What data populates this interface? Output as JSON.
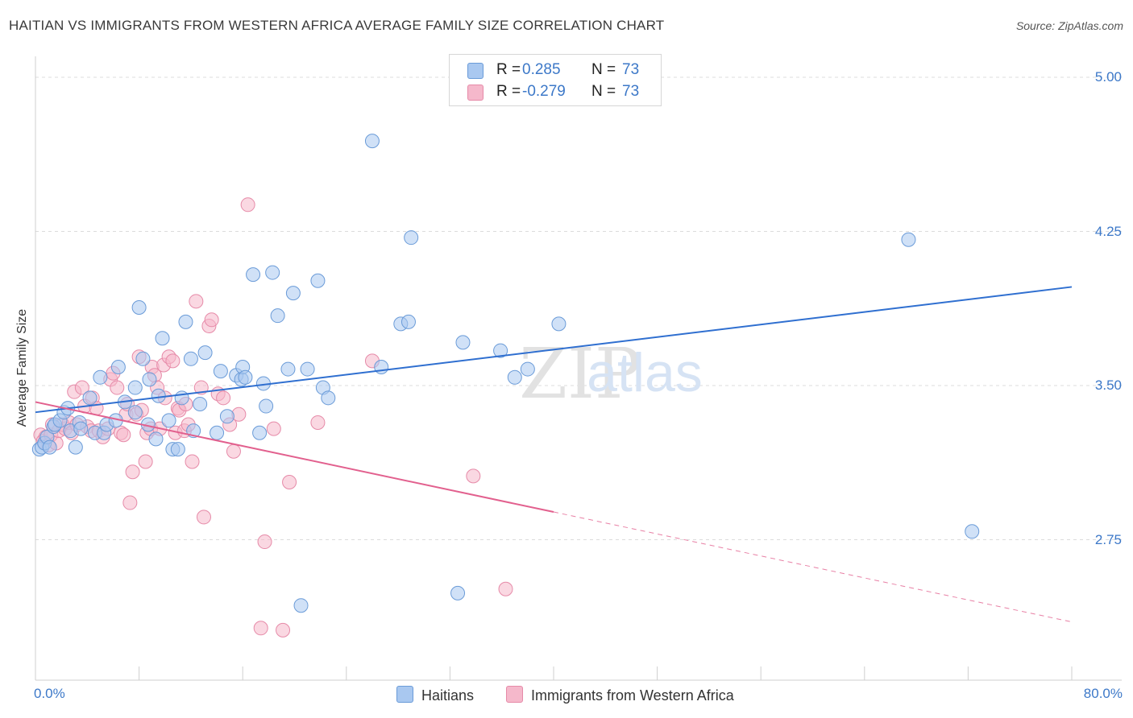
{
  "header": {
    "title": "HAITIAN VS IMMIGRANTS FROM WESTERN AFRICA AVERAGE FAMILY SIZE CORRELATION CHART",
    "source": "Source: ZipAtlas.com"
  },
  "watermark": {
    "zip": "ZIP",
    "atlas": "atlas"
  },
  "legend": {
    "rows": [
      {
        "r_label": "R =",
        "r_value": "0.285",
        "n_label": "N =",
        "n_value": "73"
      },
      {
        "r_label": "R =",
        "r_value": "-0.279",
        "n_label": "N =",
        "n_value": "73"
      }
    ]
  },
  "colors": {
    "haitians_fill": "#a9c8f0",
    "haitians_stroke": "#6a9bd8",
    "haitians_line": "#2f6fd0",
    "wafrica_fill": "#f5b8cb",
    "wafrica_stroke": "#e68aa8",
    "wafrica_line": "#e2608e",
    "tick_text": "#3c78c8"
  },
  "chart_data": {
    "type": "scatter",
    "title": "HAITIAN VS IMMIGRANTS FROM WESTERN AFRICA AVERAGE FAMILY SIZE CORRELATION CHART",
    "xlabel": "",
    "ylabel": "Average Family Size",
    "xlim": [
      0,
      80
    ],
    "ylim": [
      2.07,
      5.15
    ],
    "x_tick_labels": [
      "0.0%",
      "80.0%"
    ],
    "y_ticks": [
      2.75,
      3.5,
      4.25,
      5.0
    ],
    "y_tick_labels": [
      "2.75",
      "3.50",
      "4.25",
      "5.00"
    ],
    "grid": "horizontal dashed",
    "legend_position": "top-center",
    "series": [
      {
        "name": "Haitians",
        "trend": {
          "x": [
            0,
            80
          ],
          "y": [
            3.37,
            3.98
          ],
          "extrapolated_from_x": null
        },
        "points": [
          [
            0.3,
            3.19
          ],
          [
            0.5,
            3.2
          ],
          [
            0.7,
            3.22
          ],
          [
            0.9,
            3.25
          ],
          [
            1.1,
            3.2
          ],
          [
            1.4,
            3.3
          ],
          [
            1.5,
            3.31
          ],
          [
            1.9,
            3.33
          ],
          [
            2.2,
            3.37
          ],
          [
            2.5,
            3.39
          ],
          [
            2.7,
            3.28
          ],
          [
            3.1,
            3.2
          ],
          [
            3.4,
            3.32
          ],
          [
            3.5,
            3.29
          ],
          [
            4.2,
            3.44
          ],
          [
            4.6,
            3.27
          ],
          [
            5.0,
            3.54
          ],
          [
            5.3,
            3.27
          ],
          [
            5.5,
            3.31
          ],
          [
            6.2,
            3.33
          ],
          [
            6.4,
            3.59
          ],
          [
            6.9,
            3.42
          ],
          [
            7.7,
            3.37
          ],
          [
            7.7,
            3.49
          ],
          [
            8.0,
            3.88
          ],
          [
            8.3,
            3.63
          ],
          [
            8.7,
            3.31
          ],
          [
            8.8,
            3.53
          ],
          [
            9.3,
            3.24
          ],
          [
            9.5,
            3.45
          ],
          [
            9.8,
            3.73
          ],
          [
            10.3,
            3.33
          ],
          [
            10.6,
            3.19
          ],
          [
            11.0,
            3.19
          ],
          [
            11.3,
            3.44
          ],
          [
            11.6,
            3.81
          ],
          [
            12.0,
            3.63
          ],
          [
            12.2,
            3.28
          ],
          [
            12.7,
            3.41
          ],
          [
            13.1,
            3.66
          ],
          [
            14.0,
            3.27
          ],
          [
            14.3,
            3.57
          ],
          [
            14.8,
            3.35
          ],
          [
            15.5,
            3.55
          ],
          [
            15.9,
            3.53
          ],
          [
            16.0,
            3.59
          ],
          [
            16.2,
            3.54
          ],
          [
            16.8,
            4.04
          ],
          [
            17.3,
            3.27
          ],
          [
            17.6,
            3.51
          ],
          [
            17.8,
            3.4
          ],
          [
            18.3,
            4.05
          ],
          [
            18.7,
            3.84
          ],
          [
            19.5,
            3.58
          ],
          [
            19.9,
            3.95
          ],
          [
            20.5,
            2.43
          ],
          [
            21.0,
            3.58
          ],
          [
            21.8,
            4.01
          ],
          [
            22.2,
            3.49
          ],
          [
            22.6,
            3.44
          ],
          [
            26.0,
            4.69
          ],
          [
            26.7,
            3.59
          ],
          [
            28.2,
            3.8
          ],
          [
            28.8,
            3.81
          ],
          [
            29.0,
            4.22
          ],
          [
            32.6,
            2.49
          ],
          [
            33.0,
            3.71
          ],
          [
            35.9,
            3.67
          ],
          [
            37.0,
            3.54
          ],
          [
            38.0,
            3.58
          ],
          [
            40.4,
            3.8
          ],
          [
            67.4,
            4.21
          ],
          [
            72.3,
            2.79
          ]
        ]
      },
      {
        "name": "Immigrants from Western Africa",
        "trend": {
          "x": [
            0,
            80
          ],
          "y": [
            3.42,
            2.35
          ],
          "extrapolated_from_x": 40
        },
        "points": [
          [
            0.4,
            3.26
          ],
          [
            0.6,
            3.23
          ],
          [
            0.8,
            3.25
          ],
          [
            1.0,
            3.21
          ],
          [
            1.2,
            3.26
          ],
          [
            1.3,
            3.31
          ],
          [
            1.6,
            3.22
          ],
          [
            1.8,
            3.28
          ],
          [
            2.1,
            3.31
          ],
          [
            2.3,
            3.29
          ],
          [
            2.6,
            3.32
          ],
          [
            2.8,
            3.27
          ],
          [
            3.0,
            3.47
          ],
          [
            3.2,
            3.31
          ],
          [
            3.6,
            3.49
          ],
          [
            3.8,
            3.4
          ],
          [
            4.0,
            3.3
          ],
          [
            4.3,
            3.28
          ],
          [
            4.4,
            3.44
          ],
          [
            4.7,
            3.39
          ],
          [
            4.9,
            3.28
          ],
          [
            5.2,
            3.25
          ],
          [
            5.6,
            3.29
          ],
          [
            5.8,
            3.53
          ],
          [
            6.0,
            3.56
          ],
          [
            6.3,
            3.49
          ],
          [
            6.6,
            3.27
          ],
          [
            6.8,
            3.26
          ],
          [
            7.0,
            3.36
          ],
          [
            7.1,
            3.41
          ],
          [
            7.3,
            2.93
          ],
          [
            7.5,
            3.08
          ],
          [
            7.8,
            3.36
          ],
          [
            8.0,
            3.64
          ],
          [
            8.2,
            3.38
          ],
          [
            8.5,
            3.13
          ],
          [
            8.6,
            3.27
          ],
          [
            8.9,
            3.29
          ],
          [
            9.0,
            3.59
          ],
          [
            9.2,
            3.55
          ],
          [
            9.4,
            3.49
          ],
          [
            9.6,
            3.29
          ],
          [
            9.9,
            3.6
          ],
          [
            10.0,
            3.44
          ],
          [
            10.3,
            3.64
          ],
          [
            10.6,
            3.62
          ],
          [
            10.8,
            3.27
          ],
          [
            11.0,
            3.39
          ],
          [
            11.1,
            3.38
          ],
          [
            11.5,
            3.28
          ],
          [
            11.6,
            3.41
          ],
          [
            11.8,
            3.31
          ],
          [
            12.1,
            3.13
          ],
          [
            12.4,
            3.91
          ],
          [
            12.8,
            3.49
          ],
          [
            13.0,
            2.86
          ],
          [
            13.4,
            3.79
          ],
          [
            13.6,
            3.82
          ],
          [
            14.1,
            3.46
          ],
          [
            14.5,
            3.44
          ],
          [
            15.0,
            3.31
          ],
          [
            15.3,
            3.18
          ],
          [
            15.7,
            3.36
          ],
          [
            16.4,
            4.38
          ],
          [
            17.4,
            2.32
          ],
          [
            17.7,
            2.74
          ],
          [
            18.4,
            3.29
          ],
          [
            19.1,
            2.31
          ],
          [
            19.6,
            3.03
          ],
          [
            21.8,
            3.32
          ],
          [
            26.0,
            3.62
          ],
          [
            33.8,
            3.06
          ],
          [
            36.3,
            2.51
          ]
        ]
      }
    ]
  },
  "bottom_legend": [
    {
      "label": "Haitians"
    },
    {
      "label": "Immigrants from Western Africa"
    }
  ]
}
